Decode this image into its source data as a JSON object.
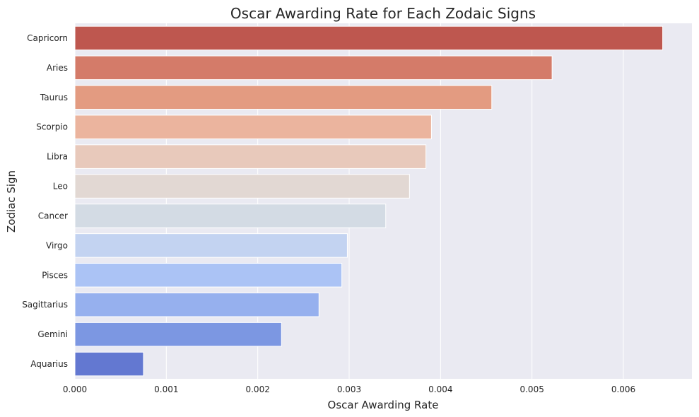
{
  "chart_data": {
    "type": "bar",
    "orientation": "horizontal",
    "title": "Oscar Awarding Rate for Each Zodaic Signs",
    "xlabel": "Oscar Awarding Rate",
    "ylabel": "Zodiac Sign",
    "xlim": [
      0,
      0.00675
    ],
    "xticks": [
      "0.000",
      "0.001",
      "0.002",
      "0.003",
      "0.004",
      "0.005",
      "0.006"
    ],
    "grid": true,
    "categories": [
      "Capricorn",
      "Aries",
      "Taurus",
      "Scorpio",
      "Libra",
      "Leo",
      "Cancer",
      "Virgo",
      "Pisces",
      "Sagittarius",
      "Gemini",
      "Aquarius"
    ],
    "values": [
      0.00643,
      0.00522,
      0.00456,
      0.0039,
      0.00384,
      0.00366,
      0.0034,
      0.00298,
      0.00292,
      0.00267,
      0.00226,
      0.00075
    ],
    "colors": [
      "#be574f",
      "#d47b69",
      "#e39b81",
      "#ebb49e",
      "#e8c9bb",
      "#e2d8d3",
      "#d3dbe4",
      "#c3d3f1",
      "#abc3f5",
      "#96b0ee",
      "#7c97e2",
      "#6378d1"
    ]
  }
}
